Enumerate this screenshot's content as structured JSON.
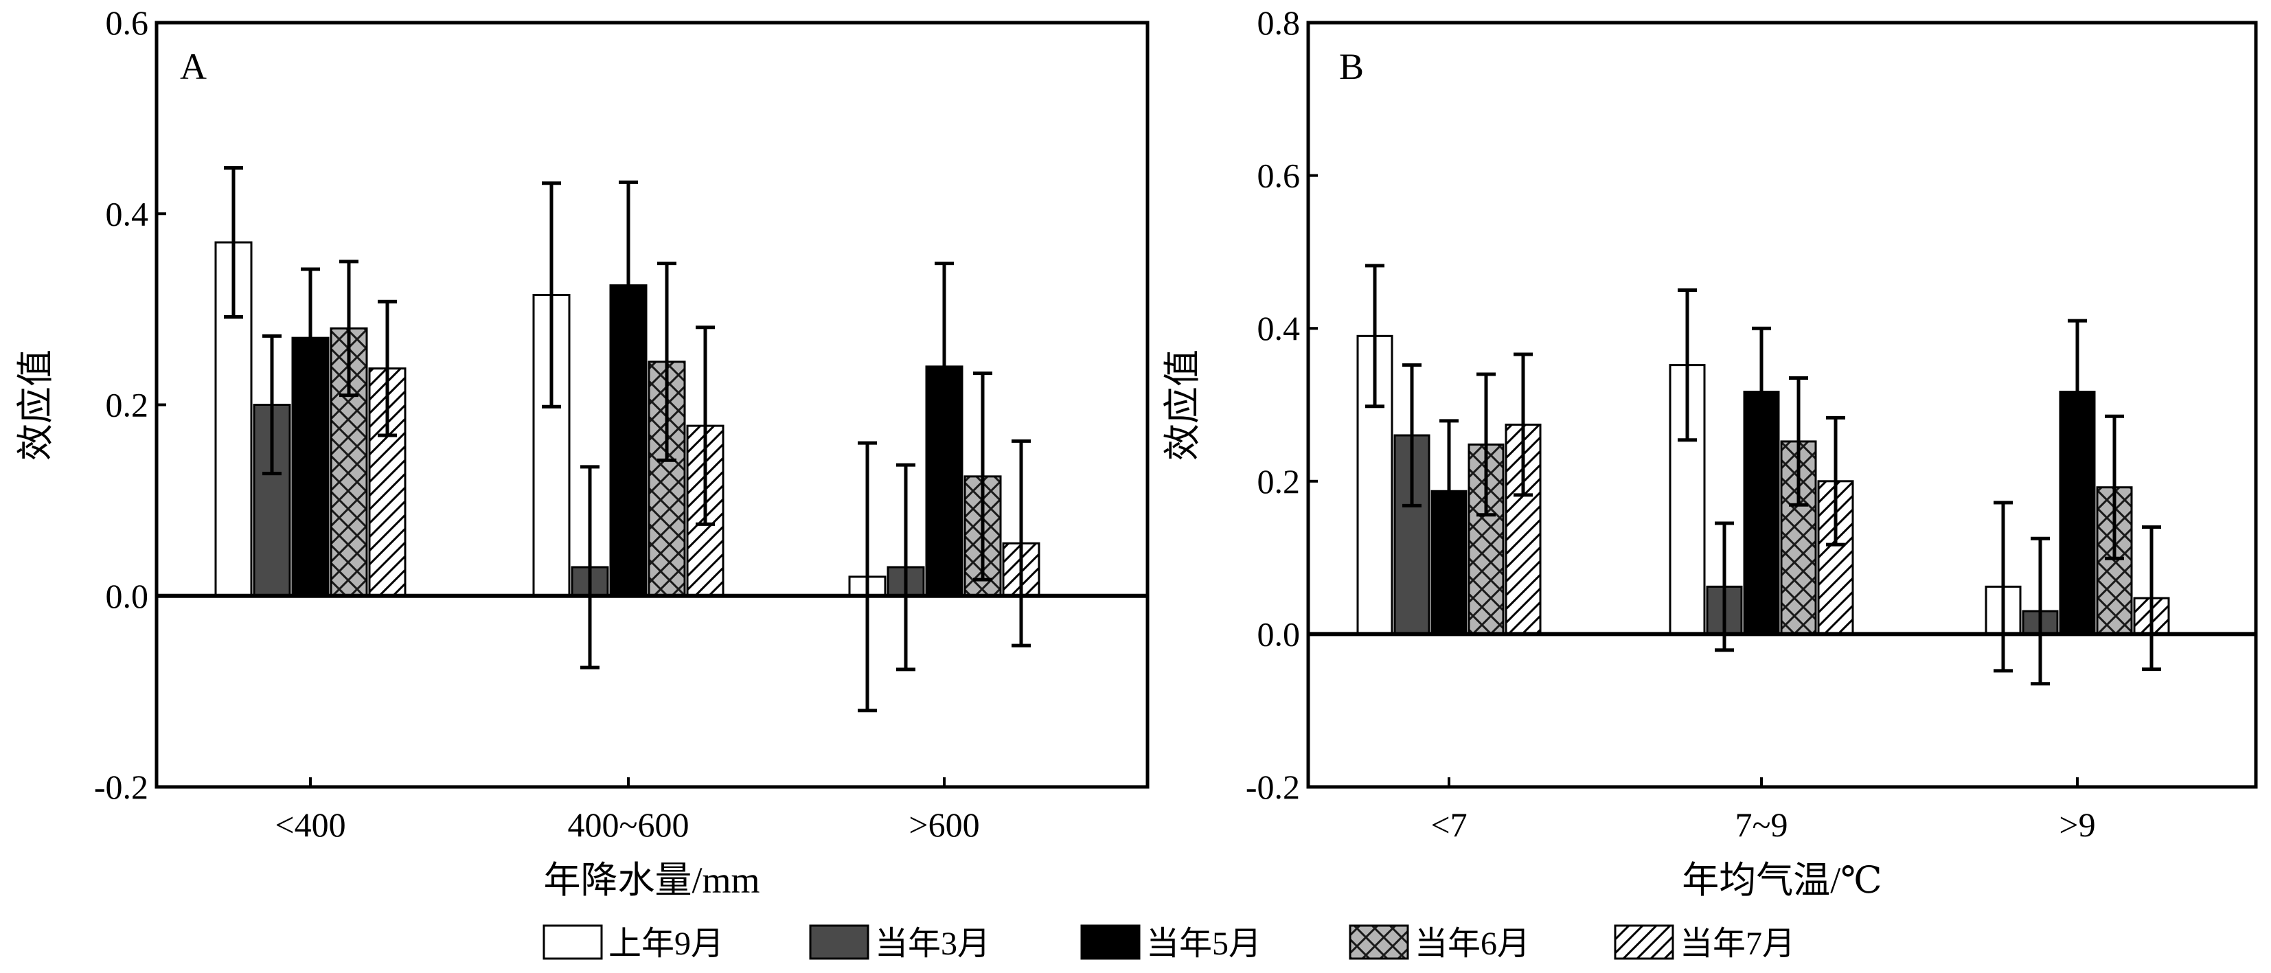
{
  "chart_data": [
    {
      "type": "bar",
      "panel_label": "A",
      "xlabel": "年降水量/mm",
      "ylabel": "效应值",
      "ylim": [
        -0.2,
        0.6
      ],
      "yticks": [
        "-0.2",
        "0.0",
        "0.2",
        "0.4",
        "0.6"
      ],
      "categories": [
        "<400",
        "400~600",
        ">600"
      ],
      "series": [
        {
          "name": "上年9月",
          "values": [
            0.37,
            0.315,
            0.02
          ],
          "errors": [
            0.078,
            0.117,
            0.14
          ]
        },
        {
          "name": "当年3月",
          "values": [
            0.2,
            0.03,
            0.03
          ],
          "errors": [
            0.072,
            0.105,
            0.107
          ]
        },
        {
          "name": "当年5月",
          "values": [
            0.27,
            0.325,
            0.24
          ],
          "errors": [
            0.072,
            0.108,
            0.108
          ]
        },
        {
          "name": "当年6月",
          "values": [
            0.28,
            0.245,
            0.125
          ],
          "errors": [
            0.07,
            0.103,
            0.108
          ]
        },
        {
          "name": "当年7月",
          "values": [
            0.238,
            0.178,
            0.055
          ],
          "errors": [
            0.07,
            0.103,
            0.107
          ]
        }
      ]
    },
    {
      "type": "bar",
      "panel_label": "B",
      "xlabel": "年均气温/℃",
      "ylabel": "效应值",
      "ylim": [
        -0.2,
        0.8
      ],
      "yticks": [
        "-0.2",
        "0.0",
        "0.2",
        "0.4",
        "0.6",
        "0.8"
      ],
      "categories": [
        "<7",
        "7~9",
        ">9"
      ],
      "series": [
        {
          "name": "上年9月",
          "values": [
            0.39,
            0.352,
            0.062
          ],
          "errors": [
            0.092,
            0.098,
            0.11
          ]
        },
        {
          "name": "当年3月",
          "values": [
            0.26,
            0.062,
            0.03
          ],
          "errors": [
            0.092,
            0.083,
            0.095
          ]
        },
        {
          "name": "当年5月",
          "values": [
            0.187,
            0.317,
            0.317
          ],
          "errors": [
            0.092,
            0.083,
            0.093
          ]
        },
        {
          "name": "当年6月",
          "values": [
            0.248,
            0.252,
            0.192
          ],
          "errors": [
            0.092,
            0.083,
            0.093
          ]
        },
        {
          "name": "当年7月",
          "values": [
            0.274,
            0.2,
            0.047
          ],
          "errors": [
            0.092,
            0.083,
            0.093
          ]
        }
      ]
    }
  ],
  "legend": {
    "placement": "bottom",
    "items": [
      {
        "label": "上年9月",
        "pattern": "white"
      },
      {
        "label": "当年3月",
        "pattern": "dark-gray"
      },
      {
        "label": "当年5月",
        "pattern": "black"
      },
      {
        "label": "当年6月",
        "pattern": "crosshatch-gray"
      },
      {
        "label": "当年7月",
        "pattern": "diagonal-hatch"
      }
    ]
  }
}
